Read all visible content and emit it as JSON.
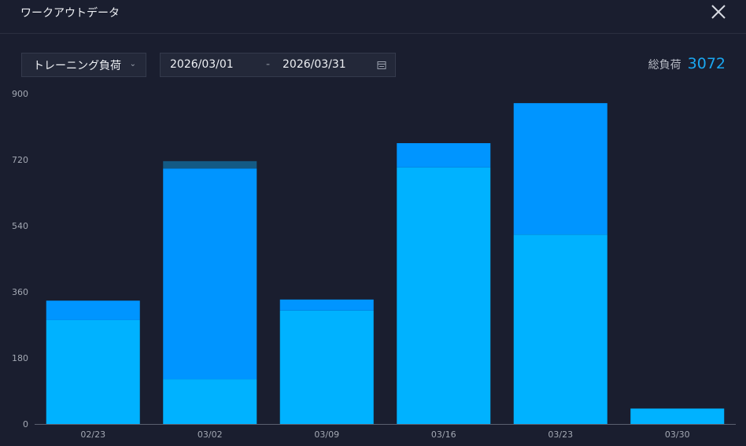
{
  "header": {
    "title": "ワークアウトデータ",
    "close_icon": "close-icon"
  },
  "controls": {
    "metric_select": {
      "value": "トレーニング負荷",
      "icon": "chevron-down-icon"
    },
    "date_range": {
      "start": "2026/03/01",
      "separator": "-",
      "end": "2026/03/31",
      "icon": "calendar-icon"
    },
    "total": {
      "label": "総負荷",
      "value": "3072"
    }
  },
  "colors": {
    "background": "#1a1e2f",
    "series_light": "#00b2ff",
    "series_mid": "#0095ff",
    "series_dark": "#135a85",
    "accent": "#1aa7f0"
  },
  "chart_data": {
    "type": "bar",
    "stacked": true,
    "categories": [
      "02/23",
      "03/02",
      "03/09",
      "03/16",
      "03/23",
      "03/30"
    ],
    "series": [
      {
        "values": [
          283,
          122,
          309,
          699,
          516,
          42
        ],
        "color": "#00b2ff"
      },
      {
        "values": [
          53,
          574,
          30,
          66,
          358,
          0
        ],
        "color": "#0095ff"
      },
      {
        "values": [
          0,
          20,
          0,
          0,
          0,
          0
        ],
        "color": "#135a85"
      }
    ],
    "yticks": [
      0,
      180,
      360,
      540,
      720,
      900
    ],
    "ylim": [
      0,
      900
    ],
    "grid": false
  }
}
